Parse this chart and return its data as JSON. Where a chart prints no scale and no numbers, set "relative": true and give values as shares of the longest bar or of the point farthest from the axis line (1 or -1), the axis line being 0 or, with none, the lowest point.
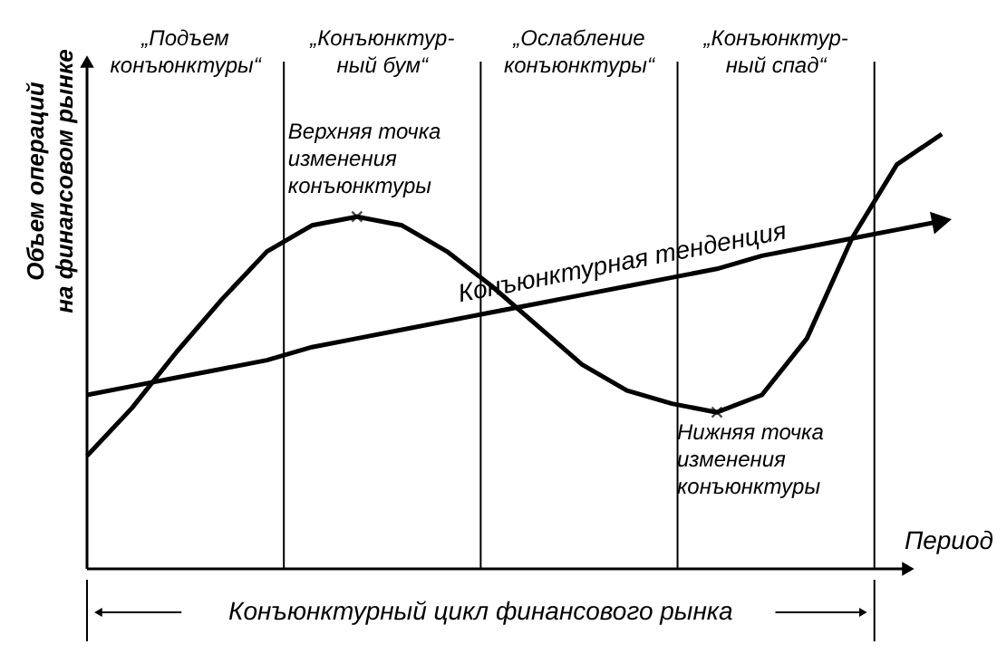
{
  "chart_data": {
    "type": "line",
    "relative": true,
    "xlabel": "Период",
    "ylabel": "Объем операций\nна финансовом рынке",
    "categories": [
      null,
      null,
      null,
      null,
      null,
      null,
      null,
      null,
      null,
      null,
      null,
      null,
      null,
      null,
      null,
      null,
      null,
      null,
      null,
      null
    ],
    "grid": false,
    "marker": "none",
    "line_style": "solid",
    "series": [
      {
        "color": "#000000",
        "values": [
          0.26,
          0.37,
          0.5,
          0.62,
          0.73,
          0.79,
          0.81,
          0.79,
          0.73,
          0.65,
          0.56,
          0.47,
          0.41,
          0.38,
          0.36,
          0.4,
          0.53,
          0.76,
          0.93,
          1.0
        ]
      },
      {
        "name": "Конъюнктурная тенденция",
        "color": "#000000",
        "values": [
          0.4,
          0.42,
          0.44,
          0.46,
          0.48,
          0.51,
          0.53,
          0.55,
          0.57,
          0.59,
          0.61,
          0.63,
          0.65,
          0.67,
          0.69,
          0.72,
          0.74,
          0.76,
          0.78,
          0.8
        ]
      }
    ],
    "annotations": [
      "„Подъем\nконъюнктуры“",
      "„Конъюнктур-\nный бум“",
      "„Ослабление\nконъюнктуры“",
      "„Конъюнктур-\nный спад“",
      "Верхняя точка\nизменения\nконъюнктуры",
      "Нижняя точка\nизменения\nконъюнктуры",
      "Конъюнктурный цикл финансового рынка"
    ]
  }
}
